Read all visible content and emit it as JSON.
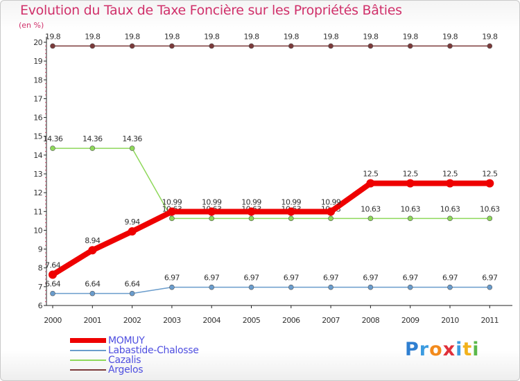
{
  "chart_data": {
    "type": "line",
    "title": "Evolution du Taux de Taxe Foncière sur les Propriétés Bâties",
    "unit_label": "(en %)",
    "x": [
      "2000",
      "2001",
      "2002",
      "2003",
      "2004",
      "2005",
      "2006",
      "2007",
      "2008",
      "2009",
      "2010",
      "2011"
    ],
    "ylim": [
      6,
      20
    ],
    "yticks": [
      "6",
      "7",
      "8",
      "9",
      "10",
      "11",
      "12",
      "13",
      "14",
      "15",
      "16",
      "17",
      "18",
      "19",
      "20"
    ],
    "series": [
      {
        "name": "Argelos",
        "color": "#7b3a3a",
        "values": [
          19.8,
          19.8,
          19.8,
          19.8,
          19.8,
          19.8,
          19.8,
          19.8,
          19.8,
          19.8,
          19.8,
          19.8
        ],
        "labels": [
          "19.8",
          "19.8",
          "19.8",
          "19.8",
          "19.8",
          "19.8",
          "19.8",
          "19.8",
          "19.8",
          "19.8",
          "19.8",
          "19.8"
        ]
      },
      {
        "name": "Cazalis",
        "color": "#8ed85a",
        "values": [
          14.36,
          14.36,
          14.36,
          10.63,
          10.63,
          10.63,
          10.63,
          10.63,
          10.63,
          10.63,
          10.63,
          10.63
        ],
        "labels": [
          "14.36",
          "14.36",
          "14.36",
          "10.63",
          "10.63",
          "10.63",
          "10.63",
          "10.63",
          "10.63",
          "10.63",
          "10.63",
          "10.63"
        ]
      },
      {
        "name": "Labastide-Chalosse",
        "color": "#6a9ccc",
        "values": [
          6.64,
          6.64,
          6.64,
          6.97,
          6.97,
          6.97,
          6.97,
          6.97,
          6.97,
          6.97,
          6.97,
          6.97
        ],
        "labels": [
          "6.64",
          "6.64",
          "6.64",
          "6.97",
          "6.97",
          "6.97",
          "6.97",
          "6.97",
          "6.97",
          "6.97",
          "6.97",
          "6.97"
        ]
      },
      {
        "name": "MOMUY",
        "color": "#ee0000",
        "values": [
          7.64,
          8.94,
          9.94,
          10.99,
          10.99,
          10.99,
          10.99,
          10.99,
          12.5,
          12.5,
          12.5,
          12.5
        ],
        "labels": [
          "7.64",
          "8.94",
          "9.94",
          "10.99",
          "10.99",
          "10.99",
          "10.99",
          "10.99",
          "12.5",
          "12.5",
          "12.5",
          "12.5"
        ]
      }
    ]
  },
  "legend": {
    "items": [
      {
        "label": "MOMUY",
        "color": "#ee0000"
      },
      {
        "label": "Labastide-Chalosse",
        "color": "#6a9ccc"
      },
      {
        "label": "Cazalis",
        "color": "#8ed85a"
      },
      {
        "label": "Argelos",
        "color": "#7b3a3a"
      }
    ]
  },
  "logo": {
    "text": "Proxiti",
    "letters": [
      {
        "ch": "P",
        "color": "#2f7fd1"
      },
      {
        "ch": "r",
        "color": "#3b9be0"
      },
      {
        "ch": "o",
        "color": "#f28a1c"
      },
      {
        "ch": "x",
        "color": "#e0303a"
      },
      {
        "ch": "i",
        "color": "#3b9be0"
      },
      {
        "ch": "t",
        "color": "#f2b21c"
      },
      {
        "ch": "i",
        "color": "#5ab84a"
      }
    ]
  }
}
